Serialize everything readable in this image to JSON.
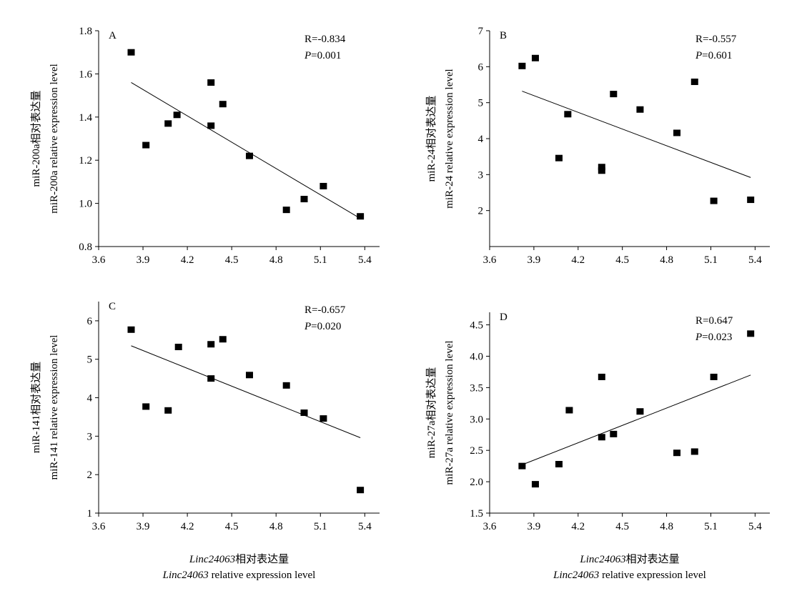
{
  "chart_data": [
    {
      "type": "scatter",
      "panel": "A",
      "ylabel_cn": "miR-200a相对表达量",
      "ylabel_en": "miR-200a relative expression level",
      "xlim": [
        3.6,
        5.5
      ],
      "ylim": [
        0.8,
        1.8
      ],
      "xticks": [
        "3.6",
        "3.9",
        "4.2",
        "4.5",
        "4.8",
        "5.1",
        "5.4"
      ],
      "yticks": [
        "0.8",
        "1.0",
        "1.2",
        "1.4",
        "1.6",
        "1.8"
      ],
      "stat_r": "R=-0.834",
      "stat_p_label": "P",
      "stat_p_value": "=0.001",
      "points": [
        [
          3.82,
          1.7
        ],
        [
          3.92,
          1.27
        ],
        [
          4.07,
          1.37
        ],
        [
          4.13,
          1.41
        ],
        [
          4.36,
          1.56
        ],
        [
          4.36,
          1.36
        ],
        [
          4.44,
          1.46
        ],
        [
          4.62,
          1.22
        ],
        [
          4.87,
          0.97
        ],
        [
          4.99,
          1.02
        ],
        [
          5.12,
          1.08
        ],
        [
          5.37,
          0.94
        ]
      ],
      "fit": [
        [
          3.82,
          1.56
        ],
        [
          5.37,
          0.93
        ]
      ]
    },
    {
      "type": "scatter",
      "panel": "B",
      "ylabel_cn": "miR-24相对表达量",
      "ylabel_en": "miR-24 relative expression level",
      "xlim": [
        3.6,
        5.5
      ],
      "ylim": [
        1,
        7
      ],
      "xticks": [
        "3.6",
        "3.9",
        "4.2",
        "4.5",
        "4.8",
        "5.1",
        "5.4"
      ],
      "yticks": [
        "2",
        "3",
        "4",
        "5",
        "6",
        "7"
      ],
      "stat_r": "R=-0.557",
      "stat_p_label": "P",
      "stat_p_value": "=0.601",
      "points": [
        [
          3.82,
          6.02
        ],
        [
          3.91,
          6.24
        ],
        [
          4.07,
          3.46
        ],
        [
          4.13,
          4.68
        ],
        [
          4.36,
          3.21
        ],
        [
          4.36,
          3.11
        ],
        [
          4.44,
          5.24
        ],
        [
          4.62,
          4.81
        ],
        [
          4.87,
          4.16
        ],
        [
          4.99,
          5.58
        ],
        [
          5.12,
          2.27
        ],
        [
          5.37,
          2.3
        ]
      ],
      "fit": [
        [
          3.82,
          5.32
        ],
        [
          5.37,
          2.92
        ]
      ]
    },
    {
      "type": "scatter",
      "panel": "C",
      "ylabel_cn": "miR-141相对表达量",
      "ylabel_en": "miR-141 relative expression level",
      "xlim": [
        3.6,
        5.5
      ],
      "ylim": [
        1,
        6.5
      ],
      "xticks": [
        "3.6",
        "3.9",
        "4.2",
        "4.5",
        "4.8",
        "5.1",
        "5.4"
      ],
      "yticks": [
        "1",
        "2",
        "3",
        "4",
        "5",
        "6"
      ],
      "stat_r": "R=-0.657",
      "stat_p_label": "P",
      "stat_p_value": "=0.020",
      "points": [
        [
          3.82,
          5.77
        ],
        [
          3.92,
          3.77
        ],
        [
          4.07,
          3.67
        ],
        [
          4.14,
          5.32
        ],
        [
          4.36,
          5.39
        ],
        [
          4.36,
          4.5
        ],
        [
          4.44,
          5.52
        ],
        [
          4.62,
          4.59
        ],
        [
          4.87,
          4.32
        ],
        [
          4.99,
          3.61
        ],
        [
          5.12,
          3.46
        ],
        [
          5.37,
          1.6
        ]
      ],
      "fit": [
        [
          3.82,
          5.35
        ],
        [
          5.37,
          2.96
        ]
      ],
      "xlabel_italic": "Linc24063",
      "xlabel_cn_suffix": "相对表达量",
      "xlabel_en_suffix": " relative expression level"
    },
    {
      "type": "scatter",
      "panel": "D",
      "ylabel_cn": "miR-27a相对表达量",
      "ylabel_en": "miR-27a relative expression level",
      "xlim": [
        3.6,
        5.5
      ],
      "ylim": [
        1.5,
        4.7
      ],
      "xticks": [
        "3.6",
        "3.9",
        "4.2",
        "4.5",
        "4.8",
        "5.1",
        "5.4"
      ],
      "yticks": [
        "1.5",
        "2.0",
        "2.5",
        "3.0",
        "3.5",
        "4.0",
        "4.5"
      ],
      "stat_r": "R=0.647",
      "stat_p_label": "P",
      "stat_p_value": "=0.023",
      "points": [
        [
          3.82,
          2.25
        ],
        [
          3.91,
          1.96
        ],
        [
          4.07,
          2.28
        ],
        [
          4.14,
          3.14
        ],
        [
          4.36,
          3.67
        ],
        [
          4.36,
          2.71
        ],
        [
          4.44,
          2.76
        ],
        [
          4.62,
          3.12
        ],
        [
          4.87,
          2.46
        ],
        [
          4.99,
          2.48
        ],
        [
          5.12,
          3.67
        ],
        [
          5.37,
          4.36
        ]
      ],
      "fit": [
        [
          3.82,
          2.27
        ],
        [
          5.37,
          3.7
        ]
      ],
      "xlabel_italic": "Linc24063",
      "xlabel_cn_suffix": "相对表达量",
      "xlabel_en_suffix": " relative expression level"
    }
  ]
}
